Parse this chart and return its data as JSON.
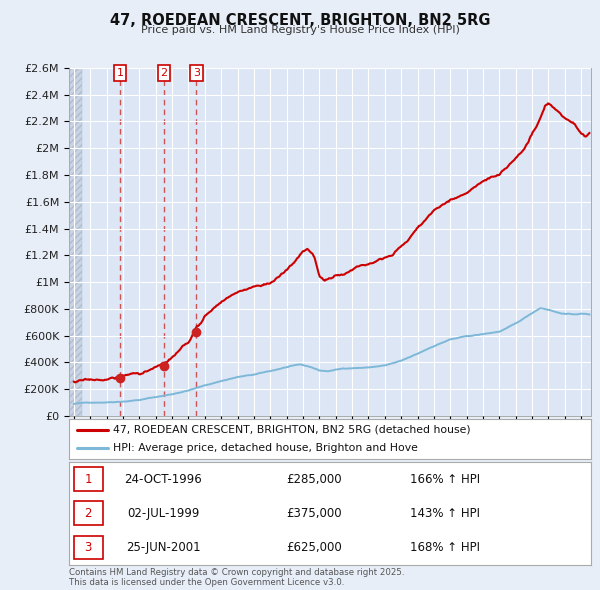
{
  "title": "47, ROEDEAN CRESCENT, BRIGHTON, BN2 5RG",
  "subtitle": "Price paid vs. HM Land Registry's House Price Index (HPI)",
  "bg_color": "#e8eef8",
  "plot_bg_color": "#dce6f5",
  "hatch_bg_color": "#c8d4e8",
  "grid_color": "#ffffff",
  "sale_vlines": [
    1996.81,
    1999.5,
    2001.48
  ],
  "sale_prices": [
    285000,
    375000,
    625000
  ],
  "legend_entries": [
    "47, ROEDEAN CRESCENT, BRIGHTON, BN2 5RG (detached house)",
    "HPI: Average price, detached house, Brighton and Hove"
  ],
  "table_rows": [
    {
      "num": "1",
      "date": "24-OCT-1996",
      "price": "£285,000",
      "hpi": "166% ↑ HPI"
    },
    {
      "num": "2",
      "date": "02-JUL-1999",
      "price": "£375,000",
      "hpi": "143% ↑ HPI"
    },
    {
      "num": "3",
      "date": "25-JUN-2001",
      "price": "£625,000",
      "hpi": "168% ↑ HPI"
    }
  ],
  "footnote": "Contains HM Land Registry data © Crown copyright and database right 2025.\nThis data is licensed under the Open Government Licence v3.0.",
  "ylim": [
    0,
    2600000
  ],
  "xlim_start": 1993.7,
  "xlim_end": 2025.6,
  "red_line_color": "#cc0000",
  "blue_line_color": "#7db8d8",
  "sale_dot_color": "#cc0000",
  "vline_color": "#cc4444",
  "label_nums": [
    "1",
    "2",
    "3"
  ]
}
